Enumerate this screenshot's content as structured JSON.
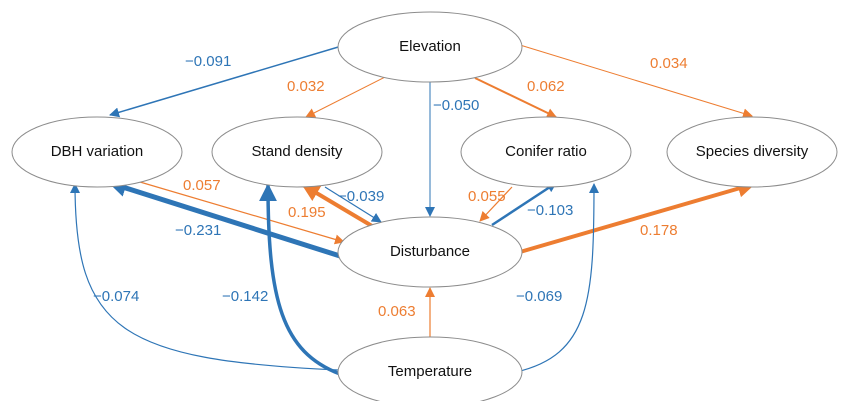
{
  "nodes": [
    {
      "label": "Elevation"
    },
    {
      "label": "DBH variation"
    },
    {
      "label": "Stand density"
    },
    {
      "label": "Conifer ratio"
    },
    {
      "label": "Species diversity"
    },
    {
      "label": "Disturbance"
    },
    {
      "label": "Temperature"
    }
  ],
  "edges": [
    {
      "label": "−0.091"
    },
    {
      "label": "0.032"
    },
    {
      "label": "−0.050"
    },
    {
      "label": "0.062"
    },
    {
      "label": "0.034"
    },
    {
      "label": "0.057"
    },
    {
      "label": "−0.231"
    },
    {
      "label": "0.195"
    },
    {
      "label": "−0.039"
    },
    {
      "label": "0.055"
    },
    {
      "label": "−0.103"
    },
    {
      "label": "0.178"
    },
    {
      "label": "0.063"
    },
    {
      "label": "−0.074"
    },
    {
      "label": "−0.142"
    },
    {
      "label": "−0.069"
    }
  ]
}
